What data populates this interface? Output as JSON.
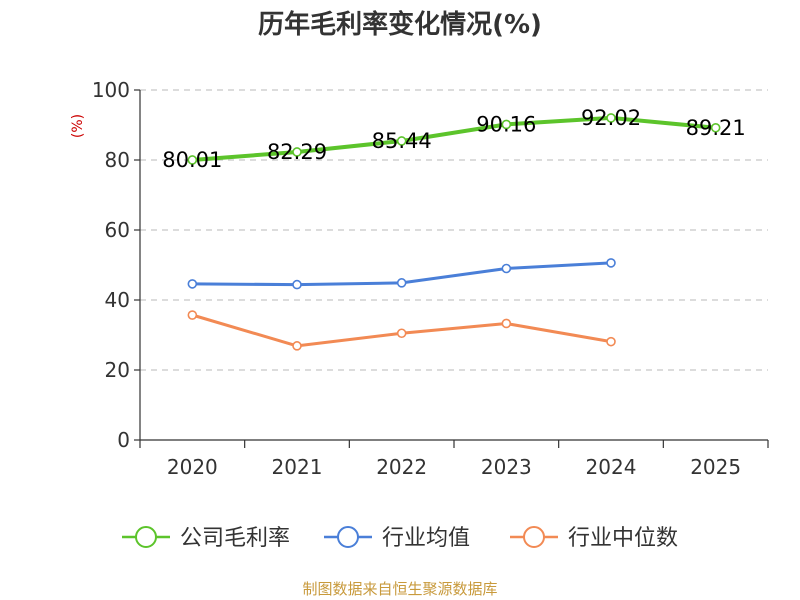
{
  "chart_data": {
    "type": "line",
    "title": "历年毛利率变化情况(%)",
    "ylabel": "(%)",
    "xlabel": "",
    "categories": [
      "2020",
      "2021",
      "2022",
      "2023",
      "2024",
      "2025"
    ],
    "ylim": [
      0,
      100
    ],
    "yticks": [
      0,
      20,
      40,
      60,
      80,
      100
    ],
    "grid": true,
    "legend_position": "bottom",
    "series": [
      {
        "name": "公司毛利率",
        "color": "#5cc42b",
        "values": [
          80.01,
          82.29,
          85.44,
          90.16,
          92.02,
          89.21
        ],
        "labels": [
          "80.01",
          "82.29",
          "85.44",
          "90.16",
          "92.02",
          "89.21"
        ]
      },
      {
        "name": "行业均值",
        "color": "#4a7fd8",
        "values": [
          44.6,
          44.4,
          44.9,
          49.0,
          50.6,
          null
        ]
      },
      {
        "name": "行业中位数",
        "color": "#f28a54",
        "values": [
          35.7,
          26.9,
          30.5,
          33.3,
          28.1,
          null
        ]
      }
    ]
  },
  "source_note": "制图数据来自恒生聚源数据库"
}
